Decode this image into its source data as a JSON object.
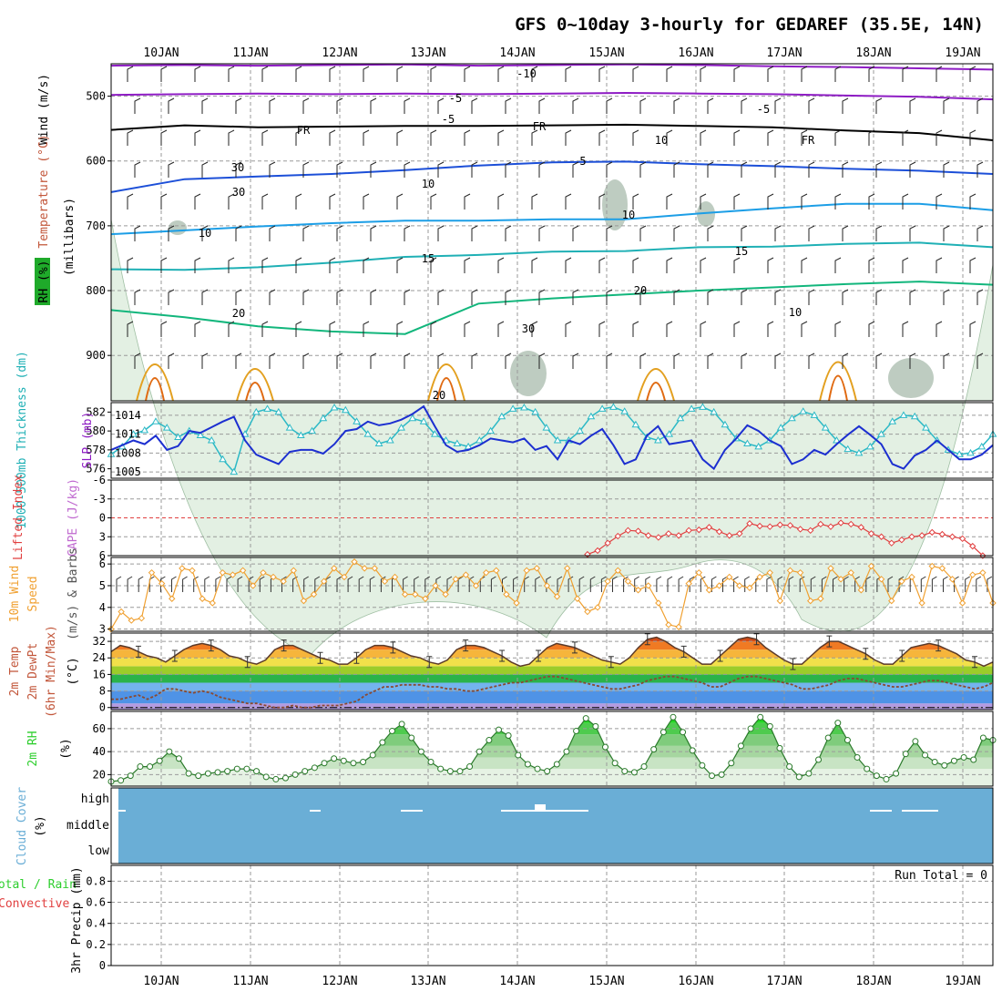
{
  "title": "GFS 0~10day 3-hourly for GEDAREF (35.5E, 14N)",
  "date_labels": [
    "10JAN",
    "11JAN",
    "12JAN",
    "13JAN",
    "14JAN",
    "15JAN",
    "16JAN",
    "17JAN",
    "18JAN",
    "19JAN"
  ],
  "colors": {
    "grid": "#9a9a9a",
    "rh_fill": "#e3f0e3",
    "rh_dark": "#6f8f75",
    "purple": "#8e1cc4",
    "black": "#000000",
    "blue": "#1c4fd8",
    "cyan": "#1c9ee6",
    "teal": "#1fb0b5",
    "green": "#12b67c",
    "orange": "#e3a020",
    "dk_orange": "#e06a12",
    "magenta": "#d0109e",
    "thick_blue": "#1c2fd0",
    "slp_cyan": "#2cb9c6",
    "cape_red": "#e14040",
    "wind_orange": "#f0a030",
    "rh_green": "#2dce2d",
    "cloud": "#6aaed6"
  },
  "chart_data": [
    {
      "type": "heatmap",
      "panel": "upper-air cross section",
      "ylabels": [
        "Wind (m/s)",
        "Temperature (°C)",
        "RH (%)",
        "(millibars)"
      ],
      "yticks": [
        500,
        600,
        700,
        800,
        900
      ],
      "ylim": [
        450,
        970
      ],
      "contour_labels": [
        "-10",
        "-5",
        "-5",
        "FR",
        "FR",
        "FR",
        "-5",
        "5",
        "10",
        "10",
        "15",
        "15",
        "20",
        "20",
        "20",
        "10",
        "10",
        "30",
        "30",
        "30",
        "10"
      ],
      "temperature_contours": [
        {
          "label": "-10",
          "color": "purple",
          "values": [
            453,
            452,
            453,
            452,
            451,
            453,
            452,
            451,
            452,
            454,
            455,
            457,
            459
          ]
        },
        {
          "label": "-5",
          "color": "purple",
          "values": [
            498,
            497,
            496,
            497,
            496,
            497,
            496,
            495,
            496,
            497,
            499,
            501,
            505
          ]
        },
        {
          "label": "FR",
          "color": "black",
          "values": [
            552,
            545,
            548,
            547,
            546,
            546,
            545,
            544,
            546,
            548,
            553,
            557,
            568
          ]
        },
        {
          "label": "5",
          "color": "blue",
          "values": [
            648,
            628,
            624,
            620,
            614,
            607,
            602,
            601,
            605,
            608,
            612,
            615,
            620
          ]
        },
        {
          "label": "10",
          "color": "cyan",
          "values": [
            713,
            707,
            701,
            696,
            692,
            692,
            690,
            690,
            681,
            673,
            666,
            666,
            676
          ]
        },
        {
          "label": "15",
          "color": "teal",
          "values": [
            767,
            768,
            764,
            757,
            748,
            745,
            740,
            739,
            733,
            732,
            728,
            726,
            733
          ]
        },
        {
          "label": "20",
          "color": "green",
          "values": [
            830,
            841,
            855,
            863,
            867,
            820,
            812,
            806,
            800,
            795,
            790,
            786,
            791
          ]
        }
      ],
      "rh_contour_labels": [
        "10",
        "30",
        "30",
        "30"
      ]
    },
    {
      "type": "line",
      "panel": "thickness and slp",
      "ylabels": [
        "1000-500mb Thickness (dm)",
        "SLP (mb)"
      ],
      "left_ticks": [
        576,
        578,
        580,
        582
      ],
      "right_ticks": [
        1005,
        1008,
        1011,
        1014
      ],
      "series": [
        {
          "name": "SLP (mb)",
          "values": [
            1007.8,
            1009.0,
            1011.0,
            1011.6,
            1013.0,
            1012.0,
            1010.5,
            1011.5,
            1010.8,
            1010.0,
            1007.0,
            1005.0,
            1011.0,
            1014.5,
            1015.0,
            1014.5,
            1012.0,
            1010.8,
            1011.5,
            1013.5,
            1015.2,
            1014.8,
            1013.0,
            1011.0,
            1009.5,
            1010.0,
            1012.0,
            1013.5,
            1013.0,
            1011.0,
            1010.0,
            1009.5,
            1009.0,
            1010.0,
            1011.5,
            1013.8,
            1015.0,
            1015.2,
            1014.5,
            1012.0,
            1010.0,
            1010.0,
            1011.5,
            1013.8,
            1015.0,
            1015.3,
            1014.6,
            1012.5,
            1010.5,
            1010.0,
            1011.0,
            1013.5,
            1015.0,
            1015.3,
            1014.5,
            1012.5,
            1010.3,
            1009.5,
            1009.0,
            1010.0,
            1012.0,
            1013.5,
            1014.6,
            1014.0,
            1012.0,
            1010.0,
            1008.6,
            1008.0,
            1009.0,
            1011.0,
            1013.0,
            1014.0,
            1013.8,
            1012.0,
            1010.0,
            1008.5,
            1007.8,
            1008.0,
            1009.0,
            1011.0
          ]
        },
        {
          "name": "1000-500mb Thickness (dm)",
          "values": [
            578.0,
            578.5,
            579.0,
            578.6,
            579.5,
            578.0,
            578.4,
            580.0,
            579.8,
            580.4,
            581.0,
            581.5,
            579.0,
            577.5,
            577.0,
            576.5,
            577.8,
            578.0,
            578.0,
            577.6,
            578.6,
            580.0,
            580.2,
            581.0,
            580.6,
            580.8,
            581.2,
            581.8,
            582.6,
            580.5,
            578.5,
            577.8,
            578.0,
            578.5,
            579.2,
            579.0,
            578.8,
            579.2,
            578.0,
            578.4,
            577.0,
            579.0,
            578.6,
            579.5,
            580.2,
            578.5,
            576.5,
            577.0,
            579.5,
            580.5,
            578.6,
            578.8,
            579.0,
            577.0,
            576.0,
            578.0,
            579.2,
            580.6,
            580.0,
            579.0,
            578.4,
            576.5,
            577.0,
            578.0,
            577.5,
            578.6,
            579.6,
            580.5,
            579.6,
            578.6,
            576.5,
            576.0,
            577.4,
            578.0,
            579.0,
            578.0,
            577.0,
            577.0,
            577.5,
            578.5
          ]
        }
      ]
    },
    {
      "type": "line",
      "panel": "stability",
      "ylabels": [
        "Lifted Index",
        "CAPE (J/kg)"
      ],
      "yticks": [
        -6,
        -3,
        0,
        3,
        6
      ],
      "ylim": [
        -6,
        6
      ],
      "series": [
        {
          "name": "Lifted Index",
          "start_index": 47,
          "values": [
            5.8,
            5.2,
            4.0,
            2.9,
            2.0,
            2.1,
            2.8,
            3.1,
            2.5,
            2.8,
            2.0,
            1.9,
            1.5,
            2.2,
            2.8,
            2.5,
            0.9,
            1.3,
            1.4,
            1.1,
            1.2,
            1.8,
            2.0,
            1.0,
            1.4,
            0.8,
            1.0,
            1.5,
            2.5,
            3.0,
            4.0,
            3.5,
            3.0,
            2.8,
            2.3,
            2.6,
            3.0,
            3.3,
            4.5,
            6.0
          ]
        }
      ]
    },
    {
      "type": "line",
      "panel": "10m wind",
      "ylabels": [
        "10m Wind",
        "Speed",
        "(m/s) & Barbs"
      ],
      "yticks": [
        3,
        4,
        5,
        6
      ],
      "ylim": [
        2.9,
        6.3
      ],
      "series": [
        {
          "name": "Speed",
          "values": [
            3.0,
            3.8,
            3.4,
            3.5,
            5.6,
            5.1,
            4.4,
            5.8,
            5.7,
            4.4,
            4.2,
            5.6,
            5.5,
            5.7,
            5.0,
            5.6,
            5.4,
            5.2,
            5.7,
            4.3,
            4.6,
            5.2,
            5.8,
            5.4,
            6.1,
            5.8,
            5.8,
            5.2,
            5.4,
            4.6,
            4.6,
            4.4,
            5.0,
            4.6,
            5.3,
            5.5,
            5.0,
            5.6,
            5.7,
            4.6,
            4.2,
            5.7,
            5.8,
            5.0,
            4.5,
            5.8,
            4.4,
            3.8,
            4.0,
            5.2,
            5.7,
            5.2,
            4.8,
            5.0,
            4.2,
            3.2,
            3.1,
            5.1,
            5.6,
            4.8,
            5.0,
            5.4,
            5.0,
            4.9,
            5.4,
            5.6,
            4.3,
            5.7,
            5.6,
            4.3,
            4.4,
            5.8,
            5.3,
            5.6,
            4.8,
            5.9,
            5.3,
            4.3,
            5.2,
            5.4,
            4.2,
            5.9,
            5.8,
            5.3,
            4.2,
            5.5,
            5.6,
            4.2
          ]
        }
      ]
    },
    {
      "type": "area",
      "panel": "2m temperature",
      "ylabels": [
        "2m Temp",
        "2m DewPt",
        "(6hr Min/Max)",
        "(°C)"
      ],
      "yticks": [
        0,
        8,
        16,
        24,
        32
      ],
      "ylim": [
        -1,
        36
      ],
      "series": [
        {
          "name": "2m Temp",
          "values": [
            27,
            30,
            29,
            27,
            25,
            24,
            22,
            25,
            28,
            30,
            31,
            30,
            28,
            25,
            24,
            22,
            21,
            23,
            28,
            30,
            30,
            28,
            26,
            24,
            23,
            21,
            21,
            24,
            28,
            30,
            30,
            29,
            27,
            25,
            24,
            22,
            21,
            23,
            28,
            30,
            30,
            29,
            27,
            25,
            22,
            20,
            21,
            25,
            29,
            31,
            30,
            29,
            27,
            25,
            23,
            22,
            21,
            24,
            29,
            33,
            34,
            32,
            29,
            27,
            24,
            21,
            21,
            25,
            29,
            33,
            34,
            33,
            29,
            26,
            23,
            21,
            21,
            25,
            29,
            32,
            32,
            30,
            28,
            26,
            23,
            21,
            21,
            25,
            29,
            30,
            31,
            30,
            28,
            26,
            23,
            22,
            20,
            22
          ]
        },
        {
          "name": "2m DewPt",
          "values": [
            4,
            4,
            5,
            6,
            4,
            6,
            9,
            9,
            8,
            7,
            8,
            7,
            5,
            4,
            3,
            2,
            2,
            1,
            0,
            0,
            1,
            0,
            0,
            1,
            1,
            1,
            2,
            3,
            6,
            8,
            10,
            10,
            11,
            11,
            11,
            10,
            10,
            9,
            9,
            8,
            8,
            9,
            10,
            11,
            12,
            12,
            13,
            14,
            15,
            15,
            14,
            13,
            12,
            11,
            10,
            9,
            9,
            10,
            11,
            13,
            14,
            15,
            15,
            14,
            13,
            12,
            10,
            10,
            12,
            14,
            15,
            15,
            14,
            13,
            12,
            11,
            9,
            9,
            10,
            11,
            13,
            14,
            14,
            13,
            12,
            11,
            10,
            10,
            11,
            12,
            13,
            13,
            12,
            11,
            10,
            9,
            10,
            12
          ]
        }
      ]
    },
    {
      "type": "area",
      "panel": "2m relative humidity",
      "ylabels": [
        "2m RH",
        "(%)"
      ],
      "yticks": [
        20,
        40,
        60
      ],
      "ylim": [
        10,
        75
      ],
      "series": [
        {
          "name": "2m RH",
          "values": [
            14,
            15,
            19,
            27,
            27,
            32,
            40,
            34,
            21,
            19,
            21,
            22,
            23,
            25,
            25,
            23,
            18,
            16,
            17,
            20,
            23,
            26,
            30,
            34,
            32,
            30,
            31,
            37,
            48,
            58,
            64,
            52,
            40,
            31,
            25,
            23,
            23,
            27,
            40,
            50,
            59,
            54,
            37,
            29,
            25,
            23,
            29,
            40,
            58,
            69,
            62,
            44,
            30,
            23,
            22,
            27,
            42,
            57,
            70,
            57,
            41,
            28,
            19,
            20,
            30,
            45,
            60,
            70,
            62,
            43,
            27,
            18,
            21,
            33,
            52,
            65,
            50,
            35,
            25,
            19,
            16,
            21,
            38,
            49,
            37,
            31,
            28,
            32,
            35,
            33,
            52,
            50
          ]
        }
      ]
    },
    {
      "type": "area",
      "panel": "cloud cover",
      "ylabels": [
        "Cloud Cover",
        "(%)"
      ],
      "tick_labels": [
        "high",
        "middle",
        "low"
      ],
      "series": [
        {
          "name": "high",
          "value": 100
        },
        {
          "name": "middle",
          "value": 100
        },
        {
          "name": "low",
          "value": 100
        }
      ]
    },
    {
      "type": "bar",
      "panel": "precipitation",
      "ylabels": [
        "3hr Precip (mm)"
      ],
      "legend": [
        "Total / Rain",
        "Convective"
      ],
      "yticks": [
        0,
        0.2,
        0.4,
        0.6,
        0.8
      ],
      "ylim": [
        0,
        0.95
      ],
      "run_total": "Run Total = 0",
      "values": []
    }
  ]
}
